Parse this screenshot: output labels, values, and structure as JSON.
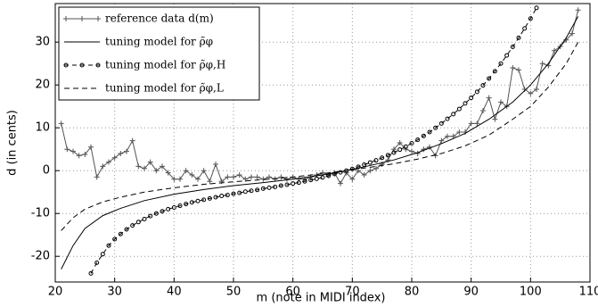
{
  "chart_data": {
    "type": "line",
    "x_label": "m (note in MIDI index)",
    "y_label": "d (in cents)",
    "xlim": [
      20,
      110
    ],
    "ylim": [
      -26,
      39
    ],
    "xticks": [
      20,
      30,
      40,
      50,
      60,
      70,
      80,
      90,
      100,
      110
    ],
    "yticks": [
      -20,
      -10,
      0,
      10,
      20,
      30
    ],
    "grid": true,
    "legend": "upper-left",
    "series": [
      {
        "name": "reference data d(m)",
        "color": "#555555",
        "dash": "none",
        "marker": "plus",
        "x": [
          21,
          22,
          23,
          24,
          25,
          26,
          27,
          28,
          29,
          30,
          31,
          32,
          33,
          34,
          35,
          36,
          37,
          38,
          39,
          40,
          41,
          42,
          43,
          44,
          45,
          46,
          47,
          48,
          49,
          50,
          51,
          52,
          53,
          54,
          55,
          56,
          57,
          58,
          59,
          60,
          61,
          62,
          63,
          64,
          65,
          66,
          67,
          68,
          69,
          70,
          71,
          72,
          73,
          74,
          75,
          76,
          77,
          78,
          79,
          80,
          81,
          82,
          83,
          84,
          85,
          86,
          87,
          88,
          89,
          90,
          91,
          92,
          93,
          94,
          95,
          96,
          97,
          98,
          99,
          100,
          101,
          102,
          103,
          104,
          105,
          106,
          107,
          108
        ],
        "values": [
          11,
          5,
          4.5,
          3.5,
          3.8,
          5.5,
          -1.5,
          1,
          2,
          3,
          4,
          4.5,
          7,
          1,
          0.5,
          2,
          0,
          1,
          -0.5,
          -2,
          -2,
          0,
          -1,
          -2,
          0,
          -2.5,
          1.5,
          -2.5,
          -1.5,
          -1.5,
          -1,
          -2,
          -1.5,
          -1.5,
          -2,
          -1.5,
          -2,
          -1.5,
          -2,
          -1.5,
          -2,
          -2,
          -1.5,
          -1,
          -0.5,
          -1,
          -0.5,
          -3,
          -0.5,
          -2,
          0,
          -1,
          0,
          0.5,
          1.5,
          2.5,
          5,
          6.5,
          5,
          4.5,
          4,
          5,
          5.5,
          3.5,
          7,
          8,
          8,
          9,
          9,
          11,
          11,
          14,
          17,
          12,
          16,
          15,
          24,
          23.5,
          19,
          18,
          19,
          25,
          24.5,
          28,
          29,
          30.5,
          32,
          37.5
        ]
      },
      {
        "name": "tuning model for ρ̃φ",
        "color": "#000000",
        "dash": "none",
        "marker": "none",
        "x": [
          21,
          23,
          25,
          28,
          31,
          35,
          40,
          45,
          50,
          55,
          60,
          65,
          69,
          73,
          77,
          81,
          85,
          89,
          93,
          97,
          100,
          103,
          106,
          108
        ],
        "values": [
          -23,
          -17.5,
          -13.5,
          -10.5,
          -8.8,
          -7,
          -5.5,
          -4.4,
          -3.5,
          -2.8,
          -2,
          -1,
          0,
          1.2,
          2.5,
          4.2,
          6.3,
          8.7,
          12,
          16,
          20,
          25,
          31,
          36
        ]
      },
      {
        "name": "tuning model for ρ̃φ,H",
        "color": "#000000",
        "dash": "5,4",
        "marker": "circle",
        "x": [
          26,
          27,
          28,
          29,
          30,
          31,
          32,
          33,
          34,
          35,
          36,
          37,
          38,
          39,
          40,
          41,
          42,
          43,
          44,
          45,
          46,
          47,
          48,
          49,
          50,
          51,
          52,
          53,
          54,
          55,
          56,
          57,
          58,
          59,
          60,
          61,
          62,
          63,
          64,
          65,
          66,
          67,
          68,
          69,
          70,
          71,
          72,
          73,
          74,
          75,
          76,
          77,
          78,
          79,
          80,
          81,
          82,
          83,
          84,
          85,
          86,
          87,
          88,
          89,
          90,
          91,
          92,
          93,
          94,
          95,
          96,
          97,
          98,
          99,
          100,
          101
        ],
        "values": [
          -24,
          -21.5,
          -19.5,
          -17.5,
          -16,
          -14.8,
          -13.7,
          -12.8,
          -12,
          -11.3,
          -10.6,
          -10,
          -9.5,
          -9,
          -8.6,
          -8.2,
          -7.8,
          -7.4,
          -7.1,
          -6.8,
          -6.5,
          -6.2,
          -5.9,
          -5.7,
          -5.4,
          -5.2,
          -4.9,
          -4.7,
          -4.5,
          -4.2,
          -4,
          -3.8,
          -3.5,
          -3.3,
          -3,
          -2.8,
          -2.5,
          -2.2,
          -1.9,
          -1.6,
          -1.2,
          -0.8,
          -0.4,
          0,
          0.4,
          0.9,
          1.4,
          1.9,
          2.4,
          3,
          3.6,
          4.2,
          4.9,
          5.6,
          6.4,
          7.2,
          8.1,
          9,
          10,
          11,
          12.1,
          13.2,
          14.4,
          15.7,
          17,
          18.4,
          19.9,
          21.5,
          23.2,
          25,
          26.9,
          28.9,
          31,
          33.2,
          35.5,
          38
        ]
      },
      {
        "name": "tuning model for ρ̃φ,L",
        "color": "#000000",
        "dash": "6,4",
        "marker": "none",
        "x": [
          21,
          23,
          25,
          28,
          31,
          35,
          40,
          45,
          50,
          55,
          60,
          65,
          69,
          73,
          77,
          81,
          85,
          89,
          93,
          97,
          100,
          103,
          106,
          108
        ],
        "values": [
          -14,
          -11,
          -9,
          -7.3,
          -6.2,
          -5,
          -4,
          -3.2,
          -2.6,
          -2.1,
          -1.5,
          -0.7,
          0,
          0.8,
          1.6,
          2.7,
          4,
          5.8,
          8.3,
          12,
          15,
          19.5,
          25,
          30
        ]
      }
    ]
  }
}
